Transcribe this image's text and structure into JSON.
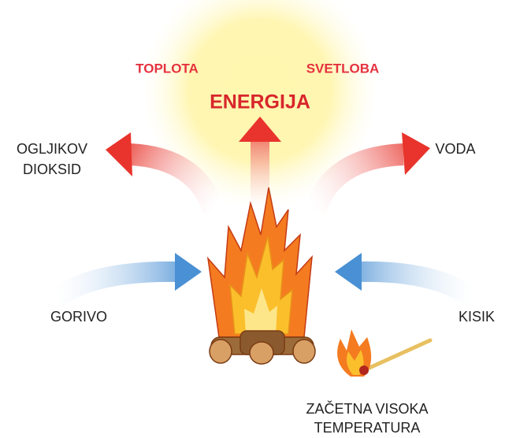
{
  "labels": {
    "heat": "TOPLOTA",
    "light": "SVETLOBA",
    "energy": "ENERGIJA",
    "carbon_dioxide": [
      "OGLJIKOV",
      "DIOKSID"
    ],
    "water": "VODA",
    "fuel": "GORIVO",
    "oxygen": "KISIK",
    "ignition": [
      "ZAČETNA VISOKA",
      "TEMPERATURA"
    ]
  }
}
